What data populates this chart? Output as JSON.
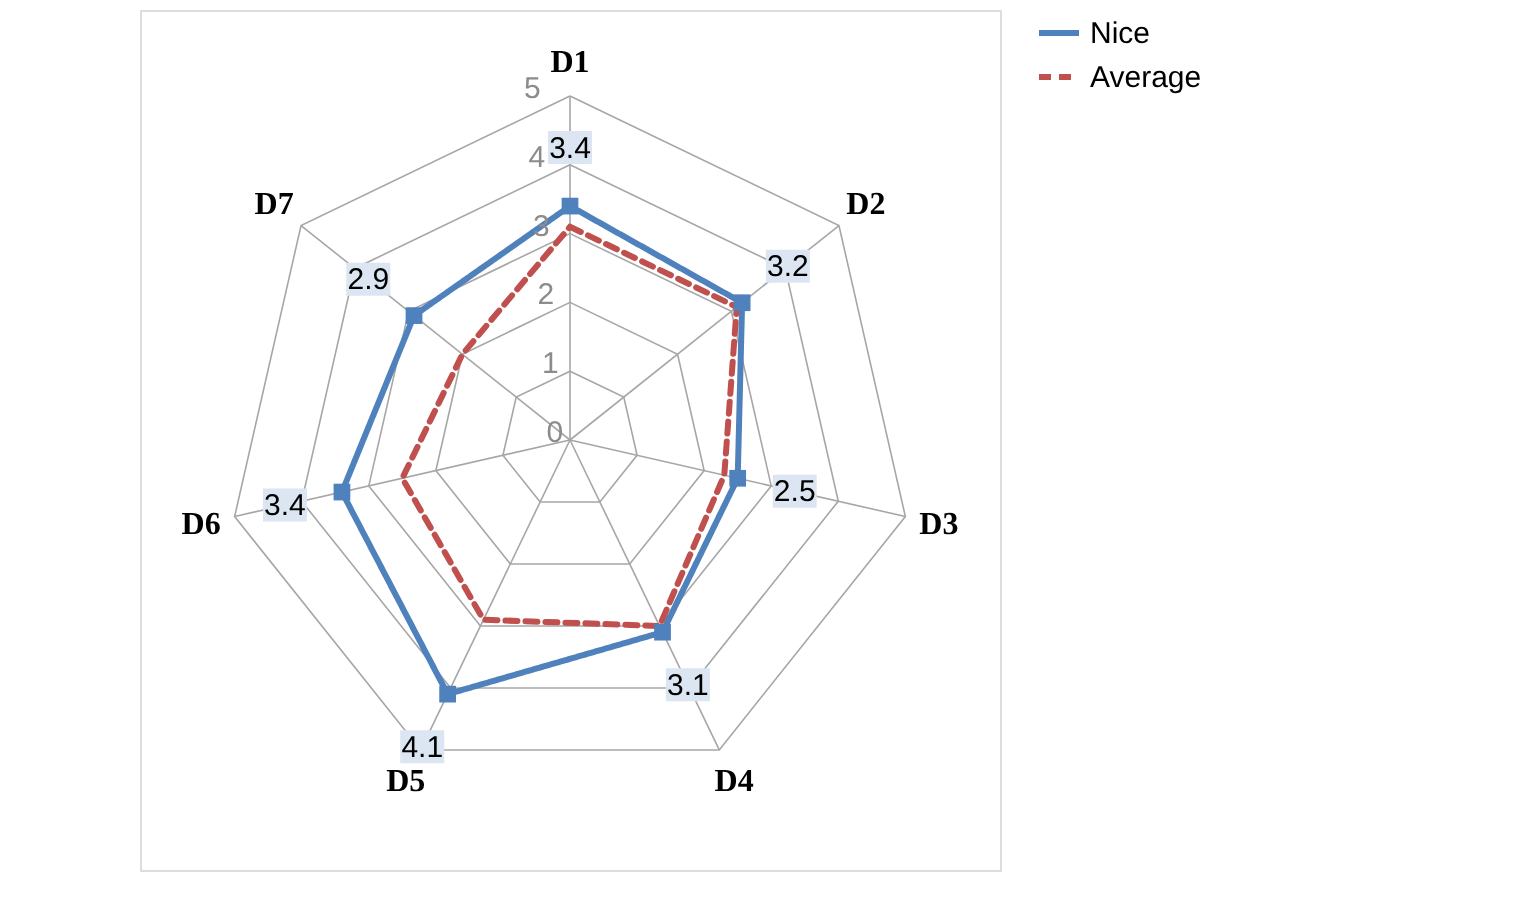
{
  "chart_data": {
    "type": "radar",
    "categories": [
      "D1",
      "D2",
      "D3",
      "D4",
      "D5",
      "D6",
      "D7"
    ],
    "series": [
      {
        "name": "Nice",
        "color": "#4f81bd",
        "values": [
          3.4,
          3.2,
          2.5,
          3.1,
          4.1,
          3.4,
          2.9
        ],
        "marker": "square",
        "line_style": "solid",
        "data_labels": true
      },
      {
        "name": "Average",
        "color": "#c0504d",
        "values": [
          3.1,
          3.1,
          2.3,
          3.0,
          2.9,
          2.5,
          2.0
        ],
        "marker": "none",
        "line_style": "dashed"
      }
    ],
    "ylim": [
      0,
      5
    ],
    "yticks": [
      0,
      1,
      2,
      3,
      4,
      5
    ],
    "grid": true,
    "legend": "right"
  }
}
